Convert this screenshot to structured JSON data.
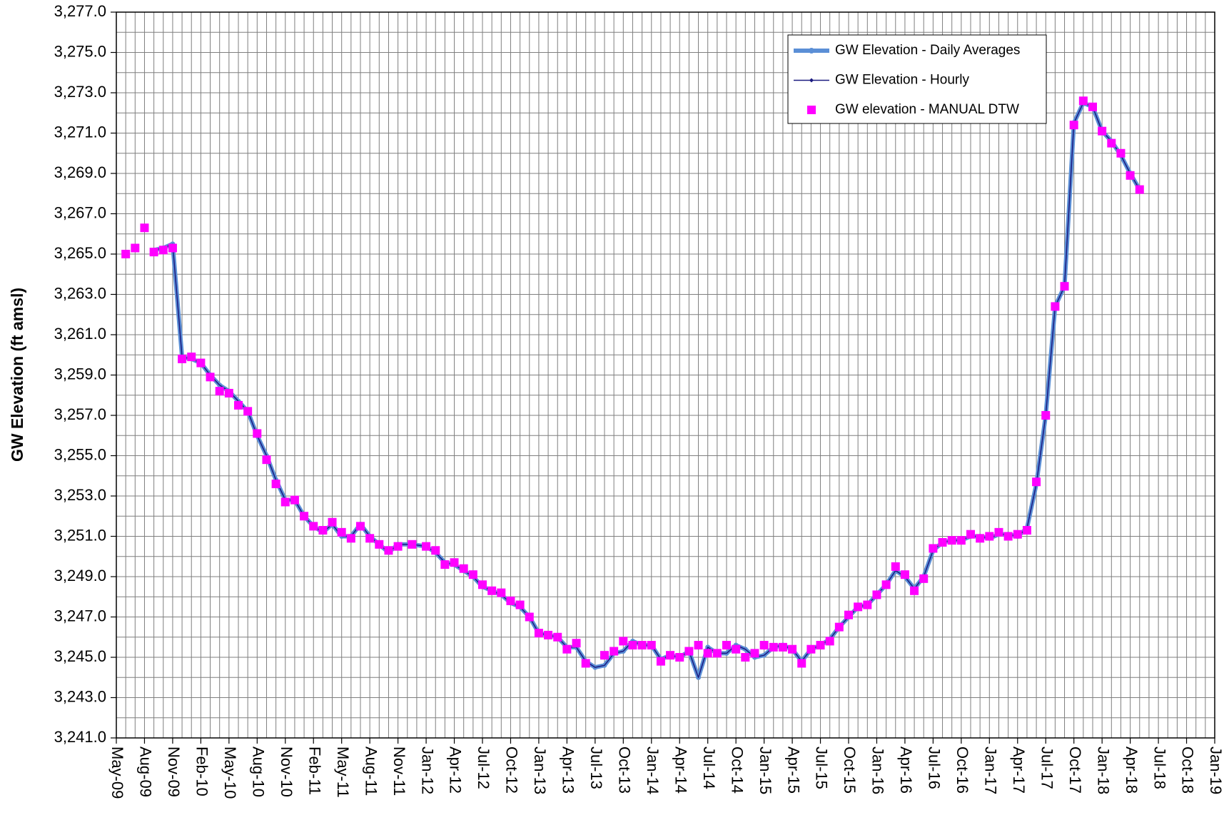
{
  "chart_data": {
    "type": "line",
    "y_label": "GW Elevation (ft amsl)",
    "x": [
      "2009-05",
      "2009-06",
      "2009-07",
      "2009-08",
      "2009-09",
      "2009-10",
      "2009-11",
      "2009-12",
      "2010-01",
      "2010-02",
      "2010-03",
      "2010-04",
      "2010-05",
      "2010-06",
      "2010-07",
      "2010-08",
      "2010-09",
      "2010-10",
      "2010-11",
      "2010-12",
      "2011-01",
      "2011-02",
      "2011-03",
      "2011-04",
      "2011-05",
      "2011-06",
      "2011-07",
      "2011-08",
      "2011-09",
      "2011-10",
      "2011-11",
      "2011-12",
      "2012-01",
      "2012-02",
      "2012-03",
      "2012-04",
      "2012-05",
      "2012-06",
      "2012-07",
      "2012-08",
      "2012-09",
      "2012-10",
      "2012-11",
      "2012-12",
      "2013-01",
      "2013-02",
      "2013-03",
      "2013-04",
      "2013-05",
      "2013-06",
      "2013-07",
      "2013-08",
      "2013-09",
      "2013-10",
      "2013-11",
      "2013-12",
      "2014-01",
      "2014-02",
      "2014-03",
      "2014-04",
      "2014-05",
      "2014-06",
      "2014-07",
      "2014-08",
      "2014-09",
      "2014-10",
      "2014-11",
      "2014-12",
      "2015-01",
      "2015-02",
      "2015-03",
      "2015-04",
      "2015-05",
      "2015-06",
      "2015-07",
      "2015-08",
      "2015-09",
      "2015-10",
      "2015-11",
      "2015-12",
      "2016-01",
      "2016-02",
      "2016-03",
      "2016-04",
      "2016-05",
      "2016-06",
      "2016-07",
      "2016-08",
      "2016-09",
      "2016-10",
      "2016-11",
      "2016-12",
      "2017-01",
      "2017-02",
      "2017-03",
      "2017-04",
      "2017-05",
      "2017-06",
      "2017-07",
      "2017-08",
      "2017-09",
      "2017-10",
      "2017-11",
      "2017-12",
      "2018-01",
      "2018-02",
      "2018-03",
      "2018-04",
      "2018-05"
    ],
    "series": [
      {
        "name": "GW Elevation - Daily Averages",
        "color": "#5b8fd6",
        "marker": "circle",
        "values": [
          null,
          null,
          null,
          null,
          3265.2,
          3265.3,
          3265.5,
          3259.9,
          3259.8,
          3259.6,
          3259.0,
          3258.5,
          3258.2,
          3257.7,
          3257.2,
          3256.0,
          3255.0,
          3253.8,
          3252.8,
          3252.8,
          3252.0,
          3251.5,
          3251.2,
          3251.6,
          3251.0,
          3251.0,
          3251.6,
          3251.0,
          3250.6,
          3250.2,
          3250.6,
          3250.6,
          3250.5,
          3250.2,
          3249.7,
          3249.6,
          3249.3,
          3249.0,
          3248.5,
          3248.3,
          3248.1,
          3247.7,
          3247.5,
          3247.0,
          3246.2,
          3246.1,
          3246.0,
          3245.5,
          3245.5,
          3244.8,
          3244.5,
          3244.6,
          3245.2,
          3245.3,
          3245.8,
          3245.6,
          3245.6,
          3244.9,
          3245.1,
          3245.0,
          3245.3,
          3244.0,
          3245.5,
          3245.2,
          3245.2,
          3245.6,
          3245.4,
          3245.0,
          3245.1,
          3245.5,
          3245.6,
          3245.4,
          3244.8,
          3245.4,
          3245.6,
          3245.9,
          3246.5,
          3247.0,
          3247.5,
          3247.6,
          3248.1,
          3248.6,
          3249.3,
          3249.0,
          3248.4,
          3249.0,
          3250.3,
          3250.7,
          3250.8,
          3250.8,
          3251.0,
          3251.0,
          3250.9,
          3251.1,
          3251.1,
          3251.0,
          3251.4,
          3253.6,
          3257.0,
          3262.4,
          3263.4,
          3271.5,
          3272.5,
          3272.3,
          3271.1,
          3270.6,
          3269.9,
          3269.0,
          3268.2
        ]
      },
      {
        "name": "GW Elevation - Hourly",
        "color": "#1a1a80",
        "marker": "diamond",
        "values": [
          null,
          null,
          null,
          null,
          3265.2,
          3265.3,
          3265.5,
          3259.9,
          3259.8,
          3259.6,
          3259.0,
          3258.5,
          3258.2,
          3257.7,
          3257.2,
          3256.0,
          3255.0,
          3253.8,
          3252.8,
          3252.8,
          3252.0,
          3251.5,
          3251.2,
          3251.6,
          3251.0,
          3251.0,
          3251.6,
          3251.0,
          3250.6,
          3250.2,
          3250.6,
          3250.6,
          3250.5,
          3250.2,
          3249.7,
          3249.6,
          3249.3,
          3249.0,
          3248.5,
          3248.3,
          3248.1,
          3247.7,
          3247.5,
          3247.0,
          3246.2,
          3246.1,
          3246.0,
          3245.5,
          3245.5,
          3244.8,
          3244.5,
          3244.6,
          3245.2,
          3245.3,
          3245.8,
          3245.6,
          3245.6,
          3244.9,
          3245.1,
          3245.0,
          3245.3,
          3244.0,
          3245.5,
          3245.2,
          3245.2,
          3245.6,
          3245.4,
          3245.0,
          3245.1,
          3245.5,
          3245.6,
          3245.4,
          3244.8,
          3245.4,
          3245.6,
          3245.9,
          3246.5,
          3247.0,
          3247.5,
          3247.6,
          3248.1,
          3248.6,
          3249.3,
          3249.0,
          3248.4,
          3249.0,
          3250.3,
          3250.7,
          3250.8,
          3250.8,
          3251.0,
          3251.0,
          3250.9,
          3251.1,
          3251.1,
          3251.0,
          3251.4,
          3253.6,
          3257.0,
          3262.4,
          3263.4,
          3271.5,
          3272.5,
          3272.3,
          3271.1,
          3270.6,
          3269.9,
          3269.0,
          3268.2
        ]
      },
      {
        "name": "GW elevation - MANUAL DTW",
        "color": "#ff00ff",
        "marker": "square",
        "line": false,
        "values": [
          null,
          3265.0,
          3265.3,
          3266.3,
          3265.1,
          3265.2,
          3265.3,
          3259.8,
          3259.9,
          3259.6,
          3258.9,
          3258.2,
          3258.1,
          3257.5,
          3257.2,
          3256.1,
          3254.8,
          3253.6,
          3252.7,
          3252.8,
          3252.0,
          3251.5,
          3251.3,
          3251.7,
          3251.2,
          3250.9,
          3251.5,
          3250.9,
          3250.6,
          3250.3,
          3250.5,
          3250.6,
          3250.5,
          3250.3,
          3249.6,
          3249.7,
          3249.4,
          3249.1,
          3248.6,
          3248.3,
          3248.2,
          3247.8,
          3247.6,
          3247.0,
          3246.2,
          3246.1,
          3246.0,
          3245.4,
          3245.7,
          3244.7,
          null,
          3245.1,
          3245.3,
          3245.8,
          3245.6,
          3245.6,
          3245.6,
          3244.8,
          3245.1,
          3245.0,
          3245.3,
          3245.6,
          3245.2,
          3245.2,
          3245.6,
          3245.4,
          3245.0,
          3245.2,
          3245.6,
          3245.5,
          3245.5,
          3245.4,
          3244.7,
          3245.4,
          3245.6,
          3245.8,
          3246.5,
          3247.1,
          3247.5,
          3247.6,
          3248.1,
          3248.6,
          3249.5,
          3249.1,
          3248.3,
          3248.9,
          3250.4,
          3250.7,
          3250.8,
          3250.8,
          3251.1,
          3250.9,
          3251.0,
          3251.2,
          3251.0,
          3251.1,
          3251.3,
          3253.7,
          3257.0,
          3262.4,
          3263.4,
          3271.4,
          3272.6,
          3272.3,
          3271.1,
          3270.5,
          3270.0,
          3268.9,
          3268.2
        ]
      }
    ],
    "xlim": [
      "2009-05",
      "2019-01"
    ],
    "xticks": [
      {
        "value": "2009-05",
        "label": "May-09"
      },
      {
        "value": "2009-08",
        "label": "Aug-09"
      },
      {
        "value": "2009-11",
        "label": "Nov-09"
      },
      {
        "value": "2010-02",
        "label": "Feb-10"
      },
      {
        "value": "2010-05",
        "label": "May-10"
      },
      {
        "value": "2010-08",
        "label": "Aug-10"
      },
      {
        "value": "2010-11",
        "label": "Nov-10"
      },
      {
        "value": "2011-02",
        "label": "Feb-11"
      },
      {
        "value": "2011-05",
        "label": "May-11"
      },
      {
        "value": "2011-08",
        "label": "Aug-11"
      },
      {
        "value": "2011-11",
        "label": "Nov-11"
      },
      {
        "value": "2012-01",
        "label": "Jan-12"
      },
      {
        "value": "2012-04",
        "label": "Apr-12"
      },
      {
        "value": "2012-07",
        "label": "Jul-12"
      },
      {
        "value": "2012-10",
        "label": "Oct-12"
      },
      {
        "value": "2013-01",
        "label": "Jan-13"
      },
      {
        "value": "2013-04",
        "label": "Apr-13"
      },
      {
        "value": "2013-07",
        "label": "Jul-13"
      },
      {
        "value": "2013-10",
        "label": "Oct-13"
      },
      {
        "value": "2014-01",
        "label": "Jan-14"
      },
      {
        "value": "2014-04",
        "label": "Apr-14"
      },
      {
        "value": "2014-07",
        "label": "Jul-14"
      },
      {
        "value": "2014-10",
        "label": "Oct-14"
      },
      {
        "value": "2015-01",
        "label": "Jan-15"
      },
      {
        "value": "2015-04",
        "label": "Apr-15"
      },
      {
        "value": "2015-07",
        "label": "Jul-15"
      },
      {
        "value": "2015-10",
        "label": "Oct-15"
      },
      {
        "value": "2016-01",
        "label": "Jan-16"
      },
      {
        "value": "2016-04",
        "label": "Apr-16"
      },
      {
        "value": "2016-07",
        "label": "Jul-16"
      },
      {
        "value": "2016-10",
        "label": "Oct-16"
      },
      {
        "value": "2017-01",
        "label": "Jan-17"
      },
      {
        "value": "2017-04",
        "label": "Apr-17"
      },
      {
        "value": "2017-07",
        "label": "Jul-17"
      },
      {
        "value": "2017-10",
        "label": "Oct-17"
      },
      {
        "value": "2018-01",
        "label": "Jan-18"
      },
      {
        "value": "2018-04",
        "label": "Apr-18"
      },
      {
        "value": "2018-07",
        "label": "Jul-18"
      },
      {
        "value": "2018-10",
        "label": "Oct-18"
      },
      {
        "value": "2019-01",
        "label": "Jan-19"
      }
    ],
    "ylim": [
      3241,
      3277
    ],
    "yticks": [
      {
        "value": 3241,
        "label": "3,241.0"
      },
      {
        "value": 3243,
        "label": "3,243.0"
      },
      {
        "value": 3245,
        "label": "3,245.0"
      },
      {
        "value": 3247,
        "label": "3,247.0"
      },
      {
        "value": 3249,
        "label": "3,249.0"
      },
      {
        "value": 3251,
        "label": "3,251.0"
      },
      {
        "value": 3253,
        "label": "3,253.0"
      },
      {
        "value": 3255,
        "label": "3,255.0"
      },
      {
        "value": 3257,
        "label": "3,257.0"
      },
      {
        "value": 3259,
        "label": "3,259.0"
      },
      {
        "value": 3261,
        "label": "3,261.0"
      },
      {
        "value": 3263,
        "label": "3,263.0"
      },
      {
        "value": 3265,
        "label": "3,265.0"
      },
      {
        "value": 3267,
        "label": "3,267.0"
      },
      {
        "value": 3269,
        "label": "3,269.0"
      },
      {
        "value": 3271,
        "label": "3,271.0"
      },
      {
        "value": 3273,
        "label": "3,273.0"
      },
      {
        "value": 3275,
        "label": "3,275.0"
      },
      {
        "value": 3277,
        "label": "3,277.0"
      }
    ],
    "grid": true,
    "legend": "upper right"
  }
}
